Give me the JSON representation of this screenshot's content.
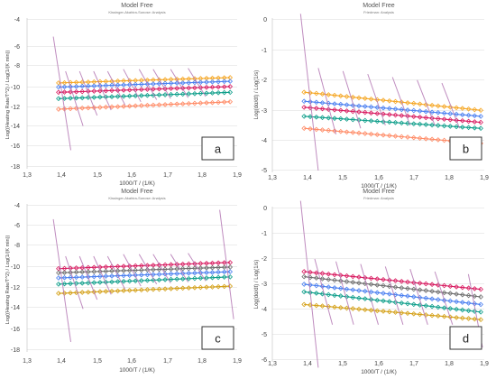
{
  "figure": {
    "panels": [
      {
        "letter": "a",
        "title": "Model Free",
        "subtitle": "Kissinger-Akahira-Sunose: Analysis",
        "ylabel": "Log((Heating Rate/T^2) / Log(1/(K min))",
        "xlabel": "1000/T / (1/K)",
        "xticks": [
          "1,3",
          "1,4",
          "1,5",
          "1,6",
          "1,7",
          "1,8",
          "1,9"
        ],
        "yticks": [
          "-4",
          "-6",
          "-8",
          "-10",
          "-12",
          "-14",
          "-16",
          "-18"
        ]
      },
      {
        "letter": "b",
        "title": "Model Free",
        "subtitle": "Friedman: Analysis",
        "ylabel": "Log(dα/dt) / Log(1/s)",
        "xlabel": "1000/T / (1/K)",
        "xticks": [
          "1,3",
          "1,4",
          "1,5",
          "1,6",
          "1,7",
          "1,8",
          "1,9"
        ],
        "yticks": [
          "0",
          "-1",
          "-2",
          "-3",
          "-4",
          "-5"
        ]
      },
      {
        "letter": "c",
        "title": "Model Free",
        "subtitle": "Kissinger-Akahira-Sunose: Analysis",
        "ylabel": "Log((Heating Rate/T^2) / Log(1/(K min))",
        "xlabel": "1000/T / (1/K)",
        "xticks": [
          "1,3",
          "1,4",
          "1,5",
          "1,6",
          "1,7",
          "1,8",
          "1,9"
        ],
        "yticks": [
          "-4",
          "-6",
          "-8",
          "-10",
          "-12",
          "-14",
          "-16",
          "-18"
        ]
      },
      {
        "letter": "d",
        "title": "Model Free",
        "subtitle": "Friedman: Analysis",
        "ylabel": "Log(dα/dt) / Log(1/s)",
        "xlabel": "1000/T / (1/K)",
        "xticks": [
          "1,3",
          "1,4",
          "1,5",
          "1,6",
          "1,7",
          "1,8",
          "1,9"
        ],
        "yticks": [
          "0",
          "-1",
          "-2",
          "-3",
          "-4",
          "-5",
          "-6"
        ]
      }
    ]
  },
  "chart_data": [
    {
      "panel": "a",
      "type": "scatter",
      "title": "Model Free",
      "subtitle": "Kissinger-Akahira-Sunose: Analysis",
      "xlabel": "1000/T / (1/K)",
      "ylabel": "Log((Heating Rate/T^2) / Log(1/(K min))",
      "xlim": [
        1.3,
        1.9
      ],
      "ylim": [
        -18,
        -4
      ],
      "grid": true,
      "series": [
        {
          "color": "#f5a623",
          "x_range": [
            1.39,
            1.88
          ],
          "y": [
            -10.0,
            -9.5
          ]
        },
        {
          "color": "#4a7ff0",
          "x_range": [
            1.39,
            1.88
          ],
          "y": [
            -10.4,
            -9.85
          ]
        },
        {
          "color": "#d81b60",
          "x_range": [
            1.39,
            1.88
          ],
          "y": [
            -10.9,
            -10.35
          ]
        },
        {
          "color": "#0e9e8a",
          "x_range": [
            1.39,
            1.88
          ],
          "y": [
            -11.5,
            -10.9
          ]
        },
        {
          "color": "#ff8a65",
          "x_range": [
            1.39,
            1.88
          ],
          "y": [
            -12.5,
            -11.8
          ]
        }
      ],
      "lines": [
        {
          "color": "#b478b4",
          "x": [
            1.375,
            1.425
          ],
          "y": [
            -5.6,
            -16.4
          ]
        },
        {
          "color": "#b478b4",
          "x": [
            1.41,
            1.46
          ],
          "y": [
            -8.9,
            -14.1
          ]
        },
        {
          "color": "#b478b4",
          "x": [
            1.45,
            1.5
          ],
          "y": [
            -8.9,
            -13.1
          ]
        },
        {
          "color": "#b478b4",
          "x": [
            1.49,
            1.54
          ],
          "y": [
            -8.9,
            -12.6
          ]
        },
        {
          "color": "#b478b4",
          "x": [
            1.53,
            1.58
          ],
          "y": [
            -8.9,
            -12.1
          ]
        },
        {
          "color": "#b478b4",
          "x": [
            1.575,
            1.625
          ],
          "y": [
            -8.7,
            -11.8
          ]
        },
        {
          "color": "#b478b4",
          "x": [
            1.62,
            1.67
          ],
          "y": [
            -8.7,
            -11.6
          ]
        },
        {
          "color": "#b478b4",
          "x": [
            1.66,
            1.71
          ],
          "y": [
            -8.7,
            -11.5
          ]
        },
        {
          "color": "#b478b4",
          "x": [
            1.71,
            1.76
          ],
          "y": [
            -8.7,
            -11.4
          ]
        },
        {
          "color": "#b478b4",
          "x": [
            1.76,
            1.81
          ],
          "y": [
            -8.6,
            -11.3
          ]
        }
      ]
    },
    {
      "panel": "b",
      "type": "scatter",
      "title": "Model Free",
      "subtitle": "Friedman: Analysis",
      "xlabel": "1000/T / (1/K)",
      "ylabel": "Log(dα/dt) / Log(1/s)",
      "xlim": [
        1.3,
        1.9
      ],
      "ylim": [
        -5,
        0
      ],
      "grid": true,
      "series": [
        {
          "color": "#f5a623",
          "x_range": [
            1.39,
            1.89
          ],
          "y": [
            -2.4,
            -3.0
          ]
        },
        {
          "color": "#4a7ff0",
          "x_range": [
            1.39,
            1.89
          ],
          "y": [
            -2.7,
            -3.2
          ]
        },
        {
          "color": "#d81b60",
          "x_range": [
            1.39,
            1.89
          ],
          "y": [
            -2.9,
            -3.4
          ]
        },
        {
          "color": "#0e9e8a",
          "x_range": [
            1.39,
            1.89
          ],
          "y": [
            -3.2,
            -3.6
          ]
        },
        {
          "color": "#ff8a65",
          "x_range": [
            1.39,
            1.89
          ],
          "y": [
            -3.6,
            -4.1
          ]
        }
      ],
      "lines": [
        {
          "color": "#b478b4",
          "x": [
            1.38,
            1.43
          ],
          "y": [
            0.2,
            -5.0
          ]
        },
        {
          "color": "#b478b4",
          "x": [
            1.43,
            1.48
          ],
          "y": [
            -1.6,
            -3.8
          ]
        },
        {
          "color": "#b478b4",
          "x": [
            1.5,
            1.55
          ],
          "y": [
            -1.7,
            -3.6
          ]
        },
        {
          "color": "#b478b4",
          "x": [
            1.57,
            1.62
          ],
          "y": [
            -1.8,
            -3.5
          ]
        },
        {
          "color": "#b478b4",
          "x": [
            1.64,
            1.69
          ],
          "y": [
            -1.9,
            -3.5
          ]
        },
        {
          "color": "#b478b4",
          "x": [
            1.71,
            1.76
          ],
          "y": [
            -2.0,
            -3.5
          ]
        },
        {
          "color": "#b478b4",
          "x": [
            1.78,
            1.83
          ],
          "y": [
            -2.1,
            -3.6
          ]
        }
      ]
    },
    {
      "panel": "c",
      "type": "scatter",
      "title": "Model Free",
      "subtitle": "Kissinger-Akahira-Sunose: Analysis",
      "xlabel": "1000/T / (1/K)",
      "ylabel": "Log((Heating Rate/T^2) / Log(1/(K min))",
      "xlim": [
        1.3,
        1.9
      ],
      "ylim": [
        -18,
        -4
      ],
      "grid": true,
      "series": [
        {
          "color": "#d81b60",
          "x_range": [
            1.39,
            1.88
          ],
          "y": [
            -10.1,
            -9.5
          ]
        },
        {
          "color": "#6d6d6d",
          "x_range": [
            1.39,
            1.88
          ],
          "y": [
            -10.5,
            -9.95
          ]
        },
        {
          "color": "#4a7ff0",
          "x_range": [
            1.39,
            1.88
          ],
          "y": [
            -11.0,
            -10.4
          ]
        },
        {
          "color": "#0e9e8a",
          "x_range": [
            1.39,
            1.88
          ],
          "y": [
            -11.6,
            -10.9
          ]
        },
        {
          "color": "#d4a017",
          "x_range": [
            1.39,
            1.88
          ],
          "y": [
            -12.5,
            -11.8
          ]
        }
      ],
      "lines": [
        {
          "color": "#b478b4",
          "x": [
            1.375,
            1.425
          ],
          "y": [
            -5.3,
            -17.2
          ]
        },
        {
          "color": "#b478b4",
          "x": [
            1.41,
            1.46
          ],
          "y": [
            -8.9,
            -14.0
          ]
        },
        {
          "color": "#b478b4",
          "x": [
            1.45,
            1.5
          ],
          "y": [
            -8.9,
            -13.1
          ]
        },
        {
          "color": "#b478b4",
          "x": [
            1.49,
            1.54
          ],
          "y": [
            -8.9,
            -12.6
          ]
        },
        {
          "color": "#b478b4",
          "x": [
            1.53,
            1.58
          ],
          "y": [
            -8.9,
            -12.1
          ]
        },
        {
          "color": "#b478b4",
          "x": [
            1.575,
            1.625
          ],
          "y": [
            -8.7,
            -11.8
          ]
        },
        {
          "color": "#b478b4",
          "x": [
            1.62,
            1.67
          ],
          "y": [
            -8.7,
            -11.6
          ]
        },
        {
          "color": "#b478b4",
          "x": [
            1.66,
            1.71
          ],
          "y": [
            -8.7,
            -11.5
          ]
        },
        {
          "color": "#b478b4",
          "x": [
            1.71,
            1.76
          ],
          "y": [
            -8.7,
            -11.4
          ]
        },
        {
          "color": "#b478b4",
          "x": [
            1.76,
            1.81
          ],
          "y": [
            -8.6,
            -11.3
          ]
        },
        {
          "color": "#b478b4",
          "x": [
            1.85,
            1.89
          ],
          "y": [
            -4.4,
            -15.0
          ]
        }
      ]
    },
    {
      "panel": "d",
      "type": "scatter",
      "title": "Model Free",
      "subtitle": "Friedman: Analysis",
      "xlabel": "1000/T / (1/K)",
      "ylabel": "Log(dα/dt) / Log(1/s)",
      "xlim": [
        1.3,
        1.9
      ],
      "ylim": [
        -6,
        0
      ],
      "grid": true,
      "series": [
        {
          "color": "#d81b60",
          "x_range": [
            1.39,
            1.89
          ],
          "y": [
            -2.5,
            -3.2
          ]
        },
        {
          "color": "#6d6d6d",
          "x_range": [
            1.39,
            1.89
          ],
          "y": [
            -2.7,
            -3.5
          ]
        },
        {
          "color": "#4a7ff0",
          "x_range": [
            1.39,
            1.89
          ],
          "y": [
            -3.0,
            -3.8
          ]
        },
        {
          "color": "#0e9e8a",
          "x_range": [
            1.39,
            1.89
          ],
          "y": [
            -3.3,
            -4.1
          ]
        },
        {
          "color": "#d4a017",
          "x_range": [
            1.39,
            1.89
          ],
          "y": [
            -3.8,
            -4.4
          ]
        }
      ],
      "lines": [
        {
          "color": "#b478b4",
          "x": [
            1.38,
            1.43
          ],
          "y": [
            0.3,
            -6.3
          ]
        },
        {
          "color": "#b478b4",
          "x": [
            1.42,
            1.47
          ],
          "y": [
            -2.0,
            -4.6
          ]
        },
        {
          "color": "#b478b4",
          "x": [
            1.48,
            1.53
          ],
          "y": [
            -2.1,
            -4.6
          ]
        },
        {
          "color": "#b478b4",
          "x": [
            1.55,
            1.6
          ],
          "y": [
            -2.2,
            -4.6
          ]
        },
        {
          "color": "#b478b4",
          "x": [
            1.62,
            1.67
          ],
          "y": [
            -2.3,
            -4.6
          ]
        },
        {
          "color": "#b478b4",
          "x": [
            1.69,
            1.74
          ],
          "y": [
            -2.4,
            -4.6
          ]
        },
        {
          "color": "#b478b4",
          "x": [
            1.76,
            1.81
          ],
          "y": [
            -2.5,
            -4.6
          ]
        },
        {
          "color": "#b478b4",
          "x": [
            1.855,
            1.895
          ],
          "y": [
            -2.6,
            -5.5
          ]
        }
      ]
    }
  ]
}
